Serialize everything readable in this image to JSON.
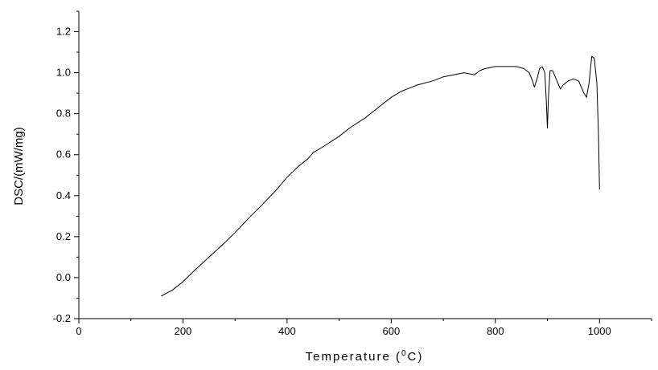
{
  "chart_data": {
    "type": "line",
    "title": "",
    "xlabel": "Temperature (°C)",
    "xlabel_parts": {
      "before": "Temperature (",
      "sup": "0",
      "after": "C)"
    },
    "ylabel": "DSC/(mW/mg)",
    "xlim": [
      0,
      1100
    ],
    "ylim": [
      -0.2,
      1.3
    ],
    "x_ticks": [
      0,
      200,
      400,
      600,
      800,
      1000
    ],
    "x_tick_labels": [
      "0",
      "200",
      "400",
      "600",
      "800",
      "1000"
    ],
    "y_ticks": [
      -0.2,
      0.0,
      0.2,
      0.4,
      0.6,
      0.8,
      1.0,
      1.2
    ],
    "y_tick_labels": [
      "-0.2",
      "0.0",
      "0.2",
      "0.4",
      "0.6",
      "0.8",
      "1.0",
      "1.2"
    ],
    "grid": false,
    "line_color": "#000000",
    "series": [
      {
        "x": [
          158,
          180,
          200,
          220,
          250,
          280,
          300,
          330,
          350,
          380,
          400,
          420,
          440,
          450,
          470,
          500,
          520,
          550,
          580,
          600,
          620,
          650,
          680,
          700,
          720,
          740,
          760,
          770,
          780,
          800,
          820,
          840,
          855,
          865,
          870,
          875,
          880,
          885,
          890,
          895,
          898,
          900,
          902,
          905,
          910,
          915,
          920,
          925,
          930,
          940,
          950,
          960,
          965,
          970,
          975,
          980,
          985,
          990,
          995,
          998,
          1000
        ],
        "y": [
          -0.09,
          -0.06,
          -0.02,
          0.03,
          0.1,
          0.17,
          0.22,
          0.3,
          0.35,
          0.43,
          0.49,
          0.54,
          0.58,
          0.61,
          0.64,
          0.69,
          0.73,
          0.78,
          0.84,
          0.88,
          0.91,
          0.94,
          0.96,
          0.98,
          0.99,
          1.0,
          0.99,
          1.01,
          1.02,
          1.03,
          1.03,
          1.03,
          1.02,
          1.0,
          0.97,
          0.93,
          0.97,
          1.02,
          1.03,
          1.0,
          0.85,
          0.73,
          0.88,
          1.01,
          1.01,
          0.98,
          0.95,
          0.92,
          0.94,
          0.96,
          0.97,
          0.96,
          0.93,
          0.9,
          0.88,
          0.95,
          1.08,
          1.07,
          0.95,
          0.7,
          0.43
        ]
      }
    ]
  }
}
